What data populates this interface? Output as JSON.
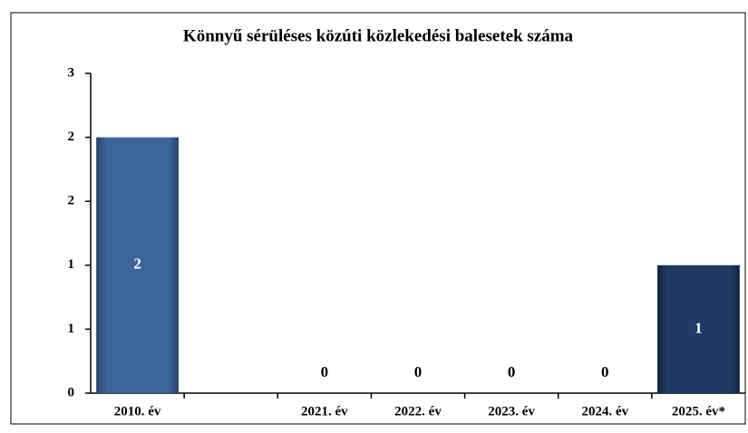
{
  "chart_data": {
    "type": "bar",
    "title": "Könnyű sérüléses közúti közlekedési balesetek száma",
    "categories": [
      "2010. év",
      null,
      "2021. év",
      "2022. év",
      "2023. év",
      "2024. év",
      "2025. év*"
    ],
    "values": [
      2,
      null,
      0,
      0,
      0,
      0,
      1
    ],
    "colors": [
      "#3d659d",
      null,
      "#3d659d",
      "#3d659d",
      "#3d659d",
      "#3d659d",
      "#1f3864"
    ],
    "ylim": [
      0,
      2.5
    ],
    "yticks": [
      0,
      {
        "value": 0.5,
        "label": "1"
      },
      1,
      {
        "value": 1.5,
        "label": "2"
      },
      2,
      {
        "value": 2.5,
        "label": "3"
      }
    ],
    "grid": false
  }
}
